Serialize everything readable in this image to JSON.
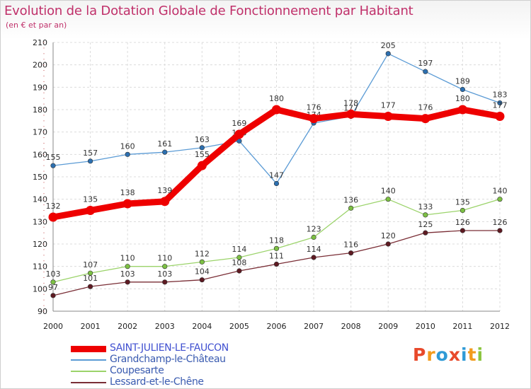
{
  "header": {
    "title": "Evolution de la Dotation Globale de Fonctionnement par Habitant",
    "subtitle": "(en € et par an)"
  },
  "logo": {
    "text": "Proxiti",
    "letters": [
      "P",
      "r",
      "o",
      "x",
      "i",
      "t",
      "i"
    ],
    "colors": [
      "#e8492b",
      "#f29b1d",
      "#2f9ad6",
      "#e8492b",
      "#2f9ad6",
      "#f29b1d",
      "#8bc53f"
    ]
  },
  "chart_data": {
    "type": "line",
    "x": [
      "2000",
      "2001",
      "2002",
      "2003",
      "2004",
      "2005",
      "2006",
      "2007",
      "2008",
      "2009",
      "2010",
      "2011",
      "2012"
    ],
    "ylim": [
      90,
      210
    ],
    "yticks": [
      "90",
      "100",
      "110",
      "120",
      "130",
      "140",
      "150",
      "160",
      "170",
      "180",
      "190",
      "200",
      "210"
    ],
    "grid": true,
    "legend_position": "bottom-left",
    "series": [
      {
        "name": "Grandchamp-le-Château",
        "color": "#5b9bd5",
        "marker": "#2c6fb0",
        "weight": "thin",
        "values": [
          155,
          157,
          160,
          161,
          163,
          166,
          147,
          174,
          177,
          205,
          197,
          189,
          183
        ],
        "labels": [
          "155",
          "157",
          "160",
          "161",
          "163",
          "166",
          "147",
          "174",
          "177",
          "205",
          "197",
          "189",
          "183"
        ]
      },
      {
        "name": "Coupesarte",
        "color": "#9bd36a",
        "marker": "#7cc043",
        "weight": "thin",
        "values": [
          103,
          107,
          110,
          110,
          112,
          114,
          118,
          123,
          136,
          140,
          133,
          135,
          140
        ],
        "labels": [
          "103",
          "107",
          "110",
          "110",
          "112",
          "114",
          "118",
          "123",
          "136",
          "140",
          "133",
          "135",
          "140"
        ]
      },
      {
        "name": "Lessard-et-le-Chêne",
        "color": "#7a2e36",
        "marker": "#5e1a22",
        "weight": "thin",
        "values": [
          97,
          101,
          103,
          103,
          104,
          108,
          111,
          114,
          116,
          120,
          125,
          126,
          126
        ],
        "labels": [
          "97",
          "101",
          "103",
          "103",
          "104",
          "108",
          "111",
          "114",
          "116",
          "120",
          "125",
          "126",
          "126"
        ]
      },
      {
        "name": "SAINT-JULIEN-LE-FAUCON",
        "color": "#ee0000",
        "marker": "#ee0000",
        "weight": "thick",
        "values": [
          132,
          135,
          138,
          139,
          155,
          169,
          180,
          176,
          178,
          177,
          176,
          180,
          177
        ],
        "labels": [
          "132",
          "135",
          "138",
          "139",
          "155",
          "169",
          "180",
          "176",
          "178",
          "177",
          "176",
          "180",
          "177"
        ]
      }
    ],
    "legend_order": [
      3,
      0,
      1,
      2
    ]
  }
}
